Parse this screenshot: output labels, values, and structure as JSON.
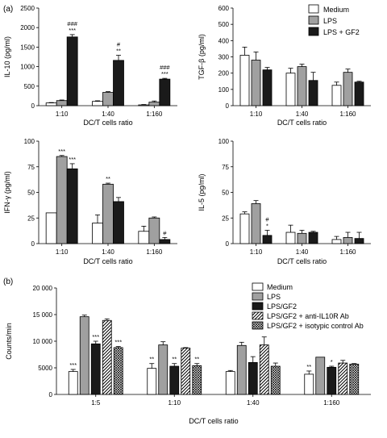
{
  "panel_labels": {
    "a": "(a)",
    "b": "(b)"
  },
  "legend_a": [
    {
      "label": "Medium",
      "fill": "#ffffff"
    },
    {
      "label": "LPS",
      "fill": "#a0a0a0"
    },
    {
      "label": "LPS + GF2",
      "fill": "#1a1a1a"
    }
  ],
  "legend_b": [
    {
      "label": "Medium",
      "fill": "white"
    },
    {
      "label": "LPS",
      "fill": "gray"
    },
    {
      "label": "LPS/GF2",
      "fill": "black"
    },
    {
      "label": "LPS/GF2 + anti-IL10R Ab",
      "fill": "hatch"
    },
    {
      "label": "LPS/GF2 + isotypic control Ab",
      "fill": "cross"
    }
  ],
  "colors": {
    "white": "#ffffff",
    "gray": "#a0a0a0",
    "black": "#1a1a1a"
  },
  "chart_data": [
    {
      "id": "il10",
      "type": "bar",
      "xlabel": "DC/T cells ratio",
      "ylabel": "IL-10 (pg/ml)",
      "categories": [
        "1:10",
        "1:40",
        "1:160"
      ],
      "ylim": [
        0,
        2500
      ],
      "yticks": [
        0,
        500,
        1000,
        1500,
        2000,
        2500
      ],
      "series": [
        {
          "fill": "white",
          "values": [
            70,
            110,
            20
          ],
          "errors": [
            10,
            15,
            10
          ]
        },
        {
          "fill": "gray",
          "values": [
            130,
            340,
            90
          ],
          "errors": [
            15,
            20,
            30
          ]
        },
        {
          "fill": "black",
          "values": [
            1760,
            1160,
            680
          ],
          "errors": [
            60,
            130,
            20
          ]
        }
      ],
      "annotations": [
        {
          "cat": 0,
          "series": 2,
          "lines": [
            "###",
            "***"
          ]
        },
        {
          "cat": 1,
          "series": 2,
          "lines": [
            "#",
            "**"
          ]
        },
        {
          "cat": 2,
          "series": 2,
          "lines": [
            "###",
            "***"
          ]
        }
      ]
    },
    {
      "id": "tgfb",
      "type": "bar",
      "xlabel": "DC/T cells ratio",
      "ylabel": "TGF-β (pg/ml)",
      "categories": [
        "1:10",
        "1:40",
        "1:160"
      ],
      "ylim": [
        0,
        600
      ],
      "yticks": [
        0,
        100,
        200,
        300,
        400,
        500,
        600
      ],
      "series": [
        {
          "fill": "white",
          "values": [
            310,
            200,
            125
          ],
          "errors": [
            50,
            30,
            20
          ]
        },
        {
          "fill": "gray",
          "values": [
            280,
            240,
            205
          ],
          "errors": [
            50,
            15,
            20
          ]
        },
        {
          "fill": "black",
          "values": [
            220,
            155,
            145
          ],
          "errors": [
            15,
            50,
            5
          ]
        }
      ],
      "annotations": []
    },
    {
      "id": "ifng",
      "type": "bar",
      "xlabel": "DC/T cells ratio",
      "ylabel": "IFN-γ (pg/ml)",
      "categories": [
        "1:10",
        "1:40",
        "1:160"
      ],
      "ylim": [
        0,
        100
      ],
      "yticks": [
        0,
        25,
        50,
        75,
        100
      ],
      "series": [
        {
          "fill": "white",
          "values": [
            30,
            20,
            12
          ],
          "errors": [
            0,
            8,
            5
          ]
        },
        {
          "fill": "gray",
          "values": [
            85,
            58,
            25
          ],
          "errors": [
            1,
            1,
            1
          ]
        },
        {
          "fill": "black",
          "values": [
            73,
            41,
            4
          ],
          "errors": [
            5,
            4,
            2
          ]
        }
      ],
      "annotations": [
        {
          "cat": 0,
          "series": 1,
          "lines": [
            "***"
          ]
        },
        {
          "cat": 0,
          "series": 2,
          "lines": [
            "***"
          ]
        },
        {
          "cat": 1,
          "series": 1,
          "lines": [
            "**"
          ]
        },
        {
          "cat": 2,
          "series": 2,
          "lines": [
            "#"
          ]
        }
      ]
    },
    {
      "id": "il5",
      "type": "bar",
      "xlabel": "DC/T cells ratio",
      "ylabel": "IL-5 (pg/ml)",
      "categories": [
        "1:10",
        "1:40",
        "1:160"
      ],
      "ylim": [
        0,
        100
      ],
      "yticks": [
        0,
        25,
        50,
        75,
        100
      ],
      "series": [
        {
          "fill": "white",
          "values": [
            29,
            11,
            4
          ],
          "errors": [
            2,
            7,
            3
          ]
        },
        {
          "fill": "gray",
          "values": [
            39,
            10,
            6
          ],
          "errors": [
            3,
            3,
            5
          ]
        },
        {
          "fill": "black",
          "values": [
            8,
            11,
            5
          ],
          "errors": [
            5,
            1,
            6
          ]
        }
      ],
      "annotations": [
        {
          "cat": 0,
          "series": 2,
          "lines": [
            "#",
            "*"
          ]
        }
      ]
    },
    {
      "id": "counts",
      "type": "bar",
      "xlabel": "DC/T cells ratio",
      "ylabel": "Counts/min",
      "categories": [
        "1:5",
        "1:10",
        "1:40",
        "1:160"
      ],
      "ylim": [
        0,
        20000
      ],
      "yticks": [
        0,
        5000,
        10000,
        15000,
        20000
      ],
      "ytick_labels": [
        "0",
        "5000",
        "10 000",
        "15 000",
        "20 000"
      ],
      "series": [
        {
          "fill": "white",
          "values": [
            4300,
            4900,
            4300,
            3800
          ],
          "errors": [
            400,
            900,
            200,
            600
          ]
        },
        {
          "fill": "gray",
          "values": [
            14600,
            9300,
            9200,
            7000
          ],
          "errors": [
            300,
            600,
            600,
            0
          ]
        },
        {
          "fill": "black",
          "values": [
            9500,
            5300,
            6000,
            5100
          ],
          "errors": [
            500,
            500,
            1100,
            200
          ]
        },
        {
          "fill": "hatch",
          "values": [
            13900,
            8700,
            9300,
            5900
          ],
          "errors": [
            300,
            100,
            1500,
            500
          ]
        },
        {
          "fill": "cross",
          "values": [
            8800,
            5400,
            5300,
            5700
          ],
          "errors": [
            200,
            400,
            600,
            100
          ]
        }
      ],
      "annotations": [
        {
          "cat": 0,
          "series": 0,
          "lines": [
            "***"
          ]
        },
        {
          "cat": 0,
          "series": 2,
          "lines": [
            "***"
          ]
        },
        {
          "cat": 0,
          "series": 4,
          "lines": [
            "***"
          ]
        },
        {
          "cat": 1,
          "series": 0,
          "lines": [
            "**"
          ]
        },
        {
          "cat": 1,
          "series": 2,
          "lines": [
            "**"
          ]
        },
        {
          "cat": 1,
          "series": 4,
          "lines": [
            "**"
          ]
        },
        {
          "cat": 3,
          "series": 0,
          "lines": [
            "**"
          ]
        },
        {
          "cat": 3,
          "series": 2,
          "lines": [
            "*"
          ]
        }
      ]
    }
  ]
}
